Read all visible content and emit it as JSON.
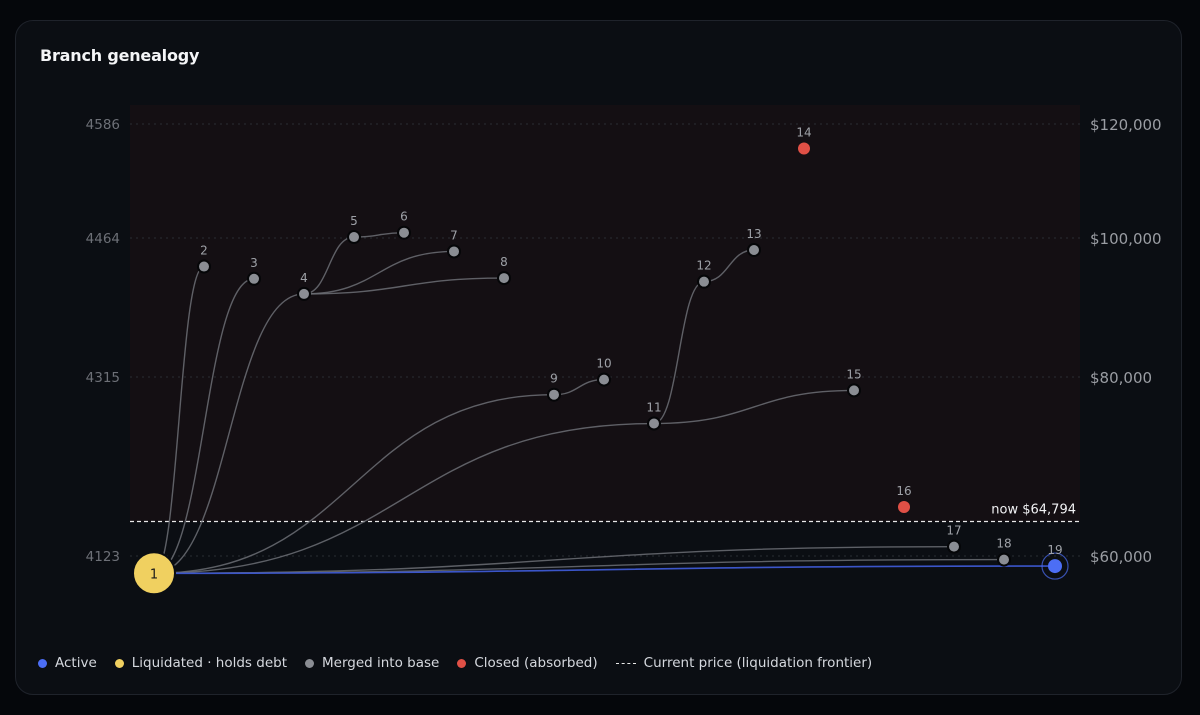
{
  "title": "Branch genealogy",
  "chart_data": {
    "type": "scatter",
    "title": "Branch genealogy",
    "y_left_ticks": [
      "4586",
      "4464",
      "4315",
      "4123"
    ],
    "y_right_ticks": [
      "$120,000",
      "$100,000",
      "$80,000",
      "$60,000"
    ],
    "now_label": "now $64,794",
    "now_price": 64794,
    "colors": {
      "active": "#4c6ef5",
      "liquidated": "#f0d060",
      "merged": "#8a8d93",
      "closed": "#e05046",
      "edge": "#6c6f75",
      "edge_active": "#3b55c9"
    },
    "nodes": [
      {
        "id": "1",
        "price": 57600,
        "status": "liquidated"
      },
      {
        "id": "2",
        "price": 100200,
        "status": "merged"
      },
      {
        "id": "3",
        "price": 98500,
        "status": "merged"
      },
      {
        "id": "4",
        "price": 96400,
        "status": "merged"
      },
      {
        "id": "5",
        "price": 104300,
        "status": "merged"
      },
      {
        "id": "6",
        "price": 104900,
        "status": "merged"
      },
      {
        "id": "7",
        "price": 102300,
        "status": "merged"
      },
      {
        "id": "8",
        "price": 98600,
        "status": "merged"
      },
      {
        "id": "9",
        "price": 82400,
        "status": "merged"
      },
      {
        "id": "10",
        "price": 84500,
        "status": "merged"
      },
      {
        "id": "11",
        "price": 78400,
        "status": "merged"
      },
      {
        "id": "12",
        "price": 98100,
        "status": "merged"
      },
      {
        "id": "13",
        "price": 102500,
        "status": "merged"
      },
      {
        "id": "14",
        "price": 116600,
        "status": "closed"
      },
      {
        "id": "15",
        "price": 83000,
        "status": "merged"
      },
      {
        "id": "16",
        "price": 66800,
        "status": "closed"
      },
      {
        "id": "17",
        "price": 61300,
        "status": "merged"
      },
      {
        "id": "18",
        "price": 59500,
        "status": "merged"
      },
      {
        "id": "19",
        "price": 58600,
        "status": "active"
      }
    ],
    "edges": [
      [
        "1",
        "2"
      ],
      [
        "1",
        "3"
      ],
      [
        "1",
        "4"
      ],
      [
        "4",
        "5"
      ],
      [
        "5",
        "6"
      ],
      [
        "4",
        "7"
      ],
      [
        "4",
        "8"
      ],
      [
        "1",
        "9"
      ],
      [
        "9",
        "10"
      ],
      [
        "1",
        "11"
      ],
      [
        "11",
        "12"
      ],
      [
        "12",
        "13"
      ],
      [
        "11",
        "15"
      ],
      [
        "1",
        "17"
      ],
      [
        "1",
        "18"
      ],
      [
        "1",
        "19"
      ]
    ]
  },
  "legend": {
    "active": "Active",
    "liquidated": "Liquidated · holds debt",
    "merged": "Merged into base",
    "closed": "Closed (absorbed)",
    "frontier": "Current price (liquidation frontier)"
  }
}
